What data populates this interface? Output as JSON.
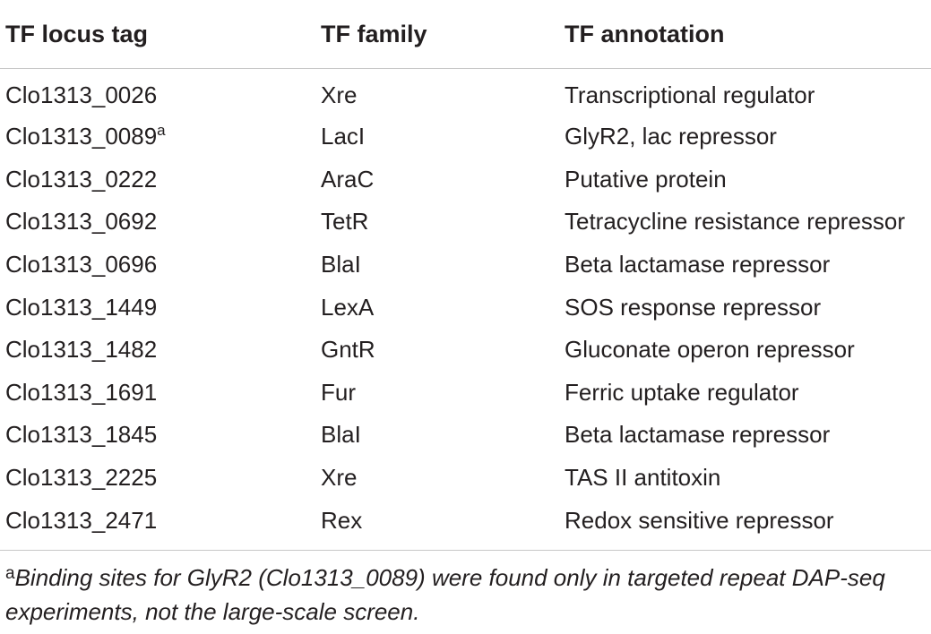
{
  "table": {
    "headers": [
      "TF locus tag",
      "TF family",
      "TF annotation"
    ],
    "rows": [
      {
        "locus": "Clo1313_0026",
        "sup": "",
        "family": "Xre",
        "annotation": "Transcriptional regulator"
      },
      {
        "locus": "Clo1313_0089",
        "sup": "a",
        "family": "LacI",
        "annotation": "GlyR2, lac repressor"
      },
      {
        "locus": "Clo1313_0222",
        "sup": "",
        "family": "AraC",
        "annotation": "Putative protein"
      },
      {
        "locus": "Clo1313_0692",
        "sup": "",
        "family": "TetR",
        "annotation": "Tetracycline resistance repressor"
      },
      {
        "locus": "Clo1313_0696",
        "sup": "",
        "family": "BlaI",
        "annotation": "Beta lactamase repressor"
      },
      {
        "locus": "Clo1313_1449",
        "sup": "",
        "family": "LexA",
        "annotation": "SOS response repressor"
      },
      {
        "locus": "Clo1313_1482",
        "sup": "",
        "family": "GntR",
        "annotation": "Gluconate operon repressor"
      },
      {
        "locus": "Clo1313_1691",
        "sup": "",
        "family": "Fur",
        "annotation": "Ferric uptake regulator"
      },
      {
        "locus": "Clo1313_1845",
        "sup": "",
        "family": "BlaI",
        "annotation": "Beta lactamase repressor"
      },
      {
        "locus": "Clo1313_2225",
        "sup": "",
        "family": "Xre",
        "annotation": "TAS II antitoxin"
      },
      {
        "locus": "Clo1313_2471",
        "sup": "",
        "family": "Rex",
        "annotation": "Redox sensitive repressor"
      }
    ]
  },
  "footnote": {
    "mark": "a",
    "text": "Binding sites for GlyR2 (Clo1313_0089) were found only in targeted repeat DAP-seq experiments, not the large-scale screen."
  }
}
